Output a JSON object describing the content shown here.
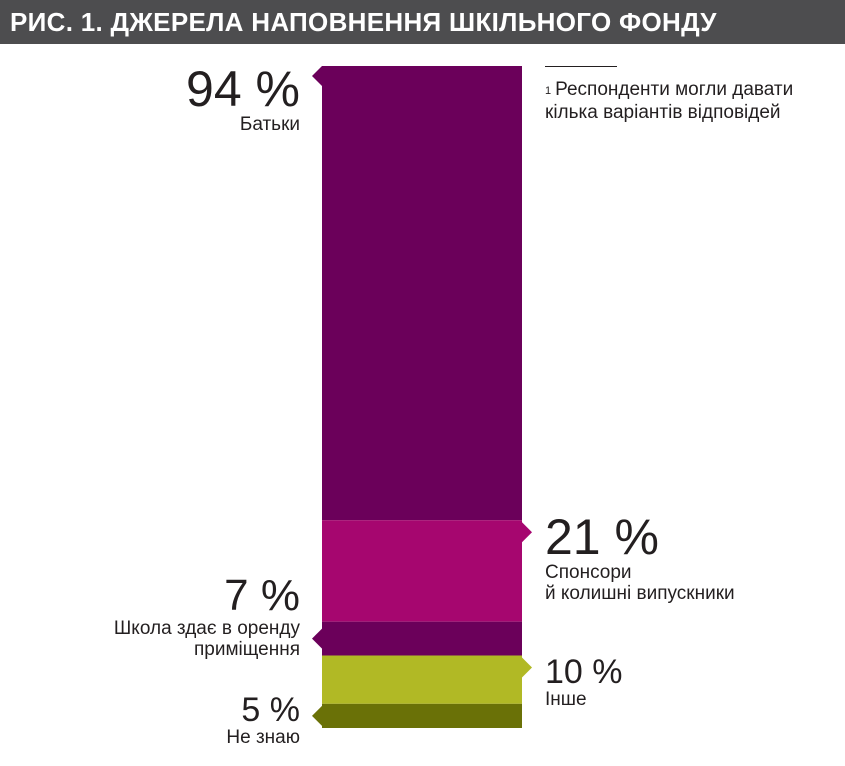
{
  "title": "РИС. 1. ДЖЕРЕЛА НАПОВНЕННЯ ШКІЛЬНОГО ФОНДУ",
  "footnote": {
    "marker": "1",
    "text": "Респонденти могли давати кілька варіантів відповідей"
  },
  "chart_data": {
    "type": "bar",
    "stacked": true,
    "categories": [
      "Батьки",
      "Спонсори й колишні випускники",
      "Школа здає в оренду приміщення",
      "Інше",
      "Не знаю"
    ],
    "values": [
      94,
      21,
      7,
      10,
      5
    ],
    "value_labels": [
      "94 %",
      "21 %",
      "7 %",
      "10 %",
      "5 %"
    ],
    "colors": [
      "#6b005a",
      "#a6066f",
      "#6b005a",
      "#b1b925",
      "#6a7107"
    ],
    "label_side": [
      "left",
      "right",
      "left",
      "right",
      "left"
    ],
    "title": "",
    "xlabel": "",
    "ylabel": ""
  }
}
